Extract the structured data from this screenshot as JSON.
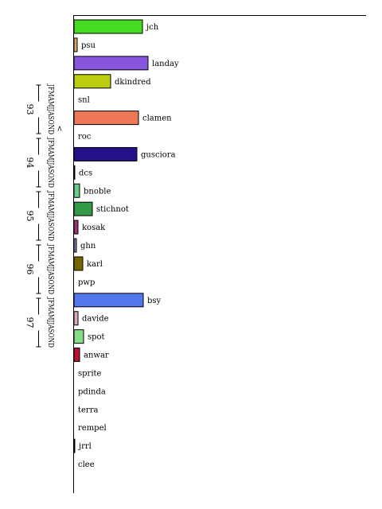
{
  "chart_data": {
    "type": "bar",
    "orientation": "horizontal",
    "title": "",
    "xlabel": "",
    "ylabel": "",
    "xlim": [
      0,
      1
    ],
    "grid": false,
    "legend": "none",
    "categories": [
      "jch",
      "psu",
      "landay",
      "dkindred",
      "snl",
      "clamen",
      "roc",
      "gusciora",
      "dcs",
      "bnoble",
      "stichnot",
      "kosak",
      "ghn",
      "karl",
      "pwp",
      "bsy",
      "davide",
      "spot",
      "anwar",
      "sprite",
      "pdinda",
      "terra",
      "rempel",
      "jrrl",
      "clee"
    ],
    "values": [
      0.86,
      0.04,
      0.93,
      0.46,
      0.0,
      0.81,
      0.0,
      0.79,
      0.01,
      0.07,
      0.23,
      0.05,
      0.03,
      0.11,
      0.0,
      0.87,
      0.05,
      0.12,
      0.07,
      0.0,
      0.0,
      0.0,
      0.0,
      0.01,
      0.0
    ],
    "colors": [
      "#44dd22",
      "#e0a860",
      "#8855dd",
      "#bbcc11",
      "#ffffff",
      "#ee7755",
      "#ffffff",
      "#221188",
      "#223399",
      "#66cc88",
      "#339944",
      "#993377",
      "#8877aa",
      "#776600",
      "#ffffff",
      "#5577ee",
      "#ddaabb",
      "#88dd88",
      "#bb1133",
      "#ffffff",
      "#ffffff",
      "#ffffff",
      "#ffffff",
      "#226633",
      "#ffffff"
    ],
    "timeline": {
      "months": "JFMAMJJASOND",
      "years": [
        {
          "label": "93",
          "start": 0.0,
          "end": 1.0
        },
        {
          "label": "94",
          "start": 1.0,
          "end": 2.0
        },
        {
          "label": "95",
          "start": 2.0,
          "end": 3.0
        },
        {
          "label": "96",
          "start": 3.0,
          "end": 4.0
        },
        {
          "label": "97",
          "start": 4.0,
          "end": 5.0
        }
      ],
      "marker": "<",
      "marker_pos": 0.86
    }
  }
}
